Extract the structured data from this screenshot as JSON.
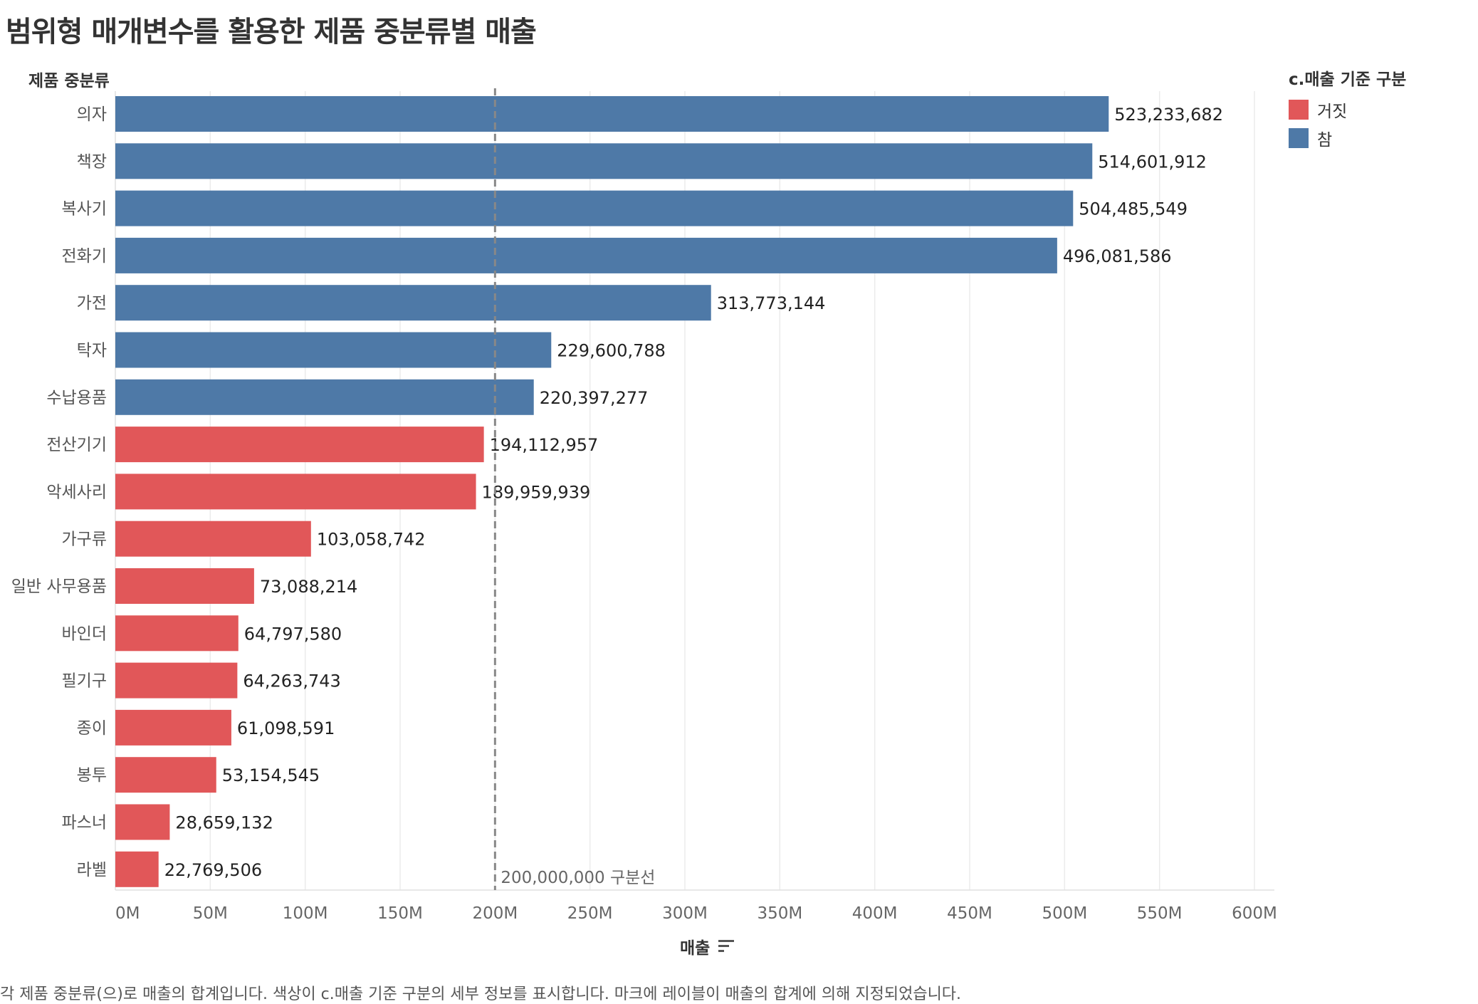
{
  "title": "범위형 매개변수를 활용한 제품 중분류별 매출",
  "row_header": "제품 중분류",
  "legend": {
    "title": "c.매출 기준 구분",
    "items": [
      {
        "label": "거짓",
        "color": "#e15759"
      },
      {
        "label": "참",
        "color": "#4e79a7"
      }
    ]
  },
  "x_axis_title": "매출",
  "caption": "각 제품 중분류(으)로 매출의 합계입니다. 색상이 c.매출 기준 구분의 세부 정보를 표시합니다. 마크에 레이블이 매출의 합계에 의해 지정되었습니다.",
  "reference_line_label": "200,000,000 구분선",
  "chart_data": {
    "type": "bar",
    "orientation": "horizontal",
    "categories": [
      "의자",
      "책장",
      "복사기",
      "전화기",
      "가전",
      "탁자",
      "수납용품",
      "전산기기",
      "악세사리",
      "가구류",
      "일반 사무용품",
      "바인더",
      "필기구",
      "종이",
      "봉투",
      "파스너",
      "라벨"
    ],
    "values": [
      523233682,
      514601912,
      504485549,
      496081586,
      313773144,
      229600788,
      220397277,
      194112957,
      189959939,
      103058742,
      73088214,
      64797580,
      64263743,
      61098591,
      53154545,
      28659132,
      22769506
    ],
    "value_labels": [
      "523,233,682",
      "514,601,912",
      "504,485,549",
      "496,081,586",
      "313,773,144",
      "229,600,788",
      "220,397,277",
      "194,112,957",
      "189,959,939",
      "103,058,742",
      "73,088,214",
      "64,797,580",
      "64,263,743",
      "61,098,591",
      "53,154,545",
      "28,659,132",
      "22,769,506"
    ],
    "color_group": [
      "참",
      "참",
      "참",
      "참",
      "참",
      "참",
      "참",
      "거짓",
      "거짓",
      "거짓",
      "거짓",
      "거짓",
      "거짓",
      "거짓",
      "거짓",
      "거짓",
      "거짓"
    ],
    "xlim": [
      0,
      600000000
    ],
    "x_ticks": [
      0,
      50000000,
      100000000,
      150000000,
      200000000,
      250000000,
      300000000,
      350000000,
      400000000,
      450000000,
      500000000,
      550000000,
      600000000
    ],
    "x_tick_labels": [
      "0M",
      "50M",
      "100M",
      "150M",
      "200M",
      "250M",
      "300M",
      "350M",
      "400M",
      "450M",
      "500M",
      "550M",
      "600M"
    ],
    "reference_line": 200000000,
    "grid": true,
    "sorted": "descending"
  }
}
